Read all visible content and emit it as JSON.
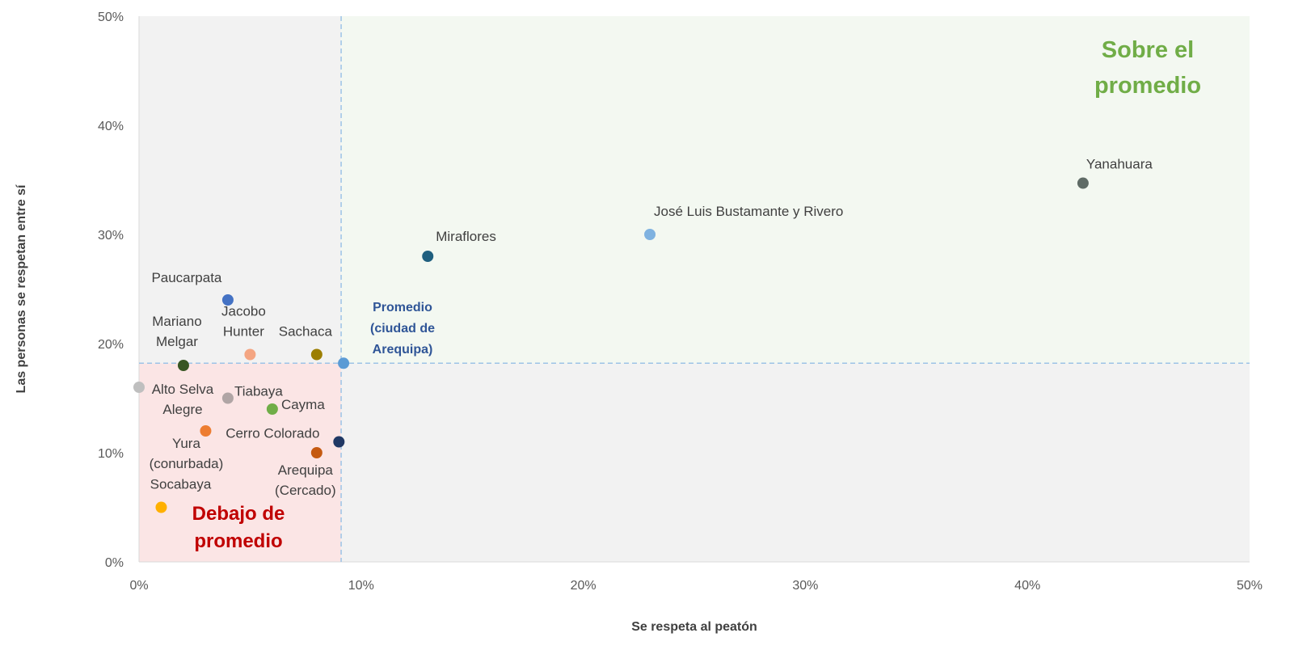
{
  "chart_data": {
    "type": "scatter",
    "xlabel": "Se respeta al peatón",
    "ylabel": "Las personas se respetan entre sí",
    "xlim": [
      0,
      50
    ],
    "ylim": [
      0,
      50
    ],
    "x_ticks": [
      "0%",
      "10%",
      "20%",
      "30%",
      "40%",
      "50%"
    ],
    "y_ticks": [
      "0%",
      "10%",
      "20%",
      "30%",
      "40%",
      "50%"
    ],
    "average": {
      "x": 9.1,
      "y": 18.2,
      "label": [
        "Promedio",
        "(ciudad de",
        "Arequipa)"
      ],
      "color": "#2F5597"
    },
    "zones": {
      "above": {
        "label": [
          "Sobre el",
          "promedio"
        ],
        "color": "#70AD47",
        "fill": "#F3F8F1"
      },
      "below": {
        "label": [
          "Debajo de",
          "promedio"
        ],
        "color": "#C00000",
        "fill": "#FBE5E5"
      },
      "neutral_fill": "#F2F2F2"
    },
    "points": [
      {
        "name": "Yanahuara",
        "lines": [
          "Yanahuara"
        ],
        "x": 42.5,
        "y": 34.7,
        "color": "#5F6B66"
      },
      {
        "name": "José Luis Bustamante y Rivero",
        "lines": [
          "José Luis Bustamante y Rivero"
        ],
        "x": 23.0,
        "y": 30.0,
        "color": "#7FB2E0"
      },
      {
        "name": "Miraflores",
        "lines": [
          "Miraflores"
        ],
        "x": 13.0,
        "y": 28.0,
        "color": "#1F5F7F"
      },
      {
        "name": "Paucarpata",
        "lines": [
          "Paucarpata"
        ],
        "x": 4.0,
        "y": 24.0,
        "color": "#4472C4"
      },
      {
        "name": "Jacobo Hunter",
        "lines": [
          "Jacobo",
          "Hunter"
        ],
        "x": 5.0,
        "y": 19.0,
        "color": "#F4A582"
      },
      {
        "name": "Sachaca",
        "lines": [
          "Sachaca"
        ],
        "x": 8.0,
        "y": 19.0,
        "color": "#9C7E00"
      },
      {
        "name": "Mariano Melgar",
        "lines": [
          "Mariano",
          "Melgar"
        ],
        "x": 2.0,
        "y": 18.0,
        "color": "#375623"
      },
      {
        "name": "Alto Selva Alegre",
        "lines": [
          "Alto Selva",
          "Alegre"
        ],
        "x": 0.0,
        "y": 16.0,
        "color": "#BFBFBF"
      },
      {
        "name": "Tiabaya",
        "lines": [
          "Tiabaya"
        ],
        "x": 4.0,
        "y": 15.0,
        "color": "#B0A5A5"
      },
      {
        "name": "Cayma",
        "lines": [
          "Cayma"
        ],
        "x": 6.0,
        "y": 14.0,
        "color": "#70AD47"
      },
      {
        "name": "Yura (conurbada)",
        "lines": [
          "Yura",
          "(conurbada)"
        ],
        "x": 3.0,
        "y": 12.0,
        "color": "#ED7D31"
      },
      {
        "name": "Cerro Colorado",
        "lines": [
          "Cerro Colorado"
        ],
        "x": 9.0,
        "y": 11.0,
        "color": "#203864"
      },
      {
        "name": "Arequipa (Cercado)",
        "lines": [
          "Arequipa",
          "(Cercado)"
        ],
        "x": 8.0,
        "y": 10.0,
        "color": "#C55A11"
      },
      {
        "name": "Socabaya",
        "lines": [
          "Socabaya"
        ],
        "x": 1.0,
        "y": 5.0,
        "color": "#FFB000"
      }
    ]
  }
}
